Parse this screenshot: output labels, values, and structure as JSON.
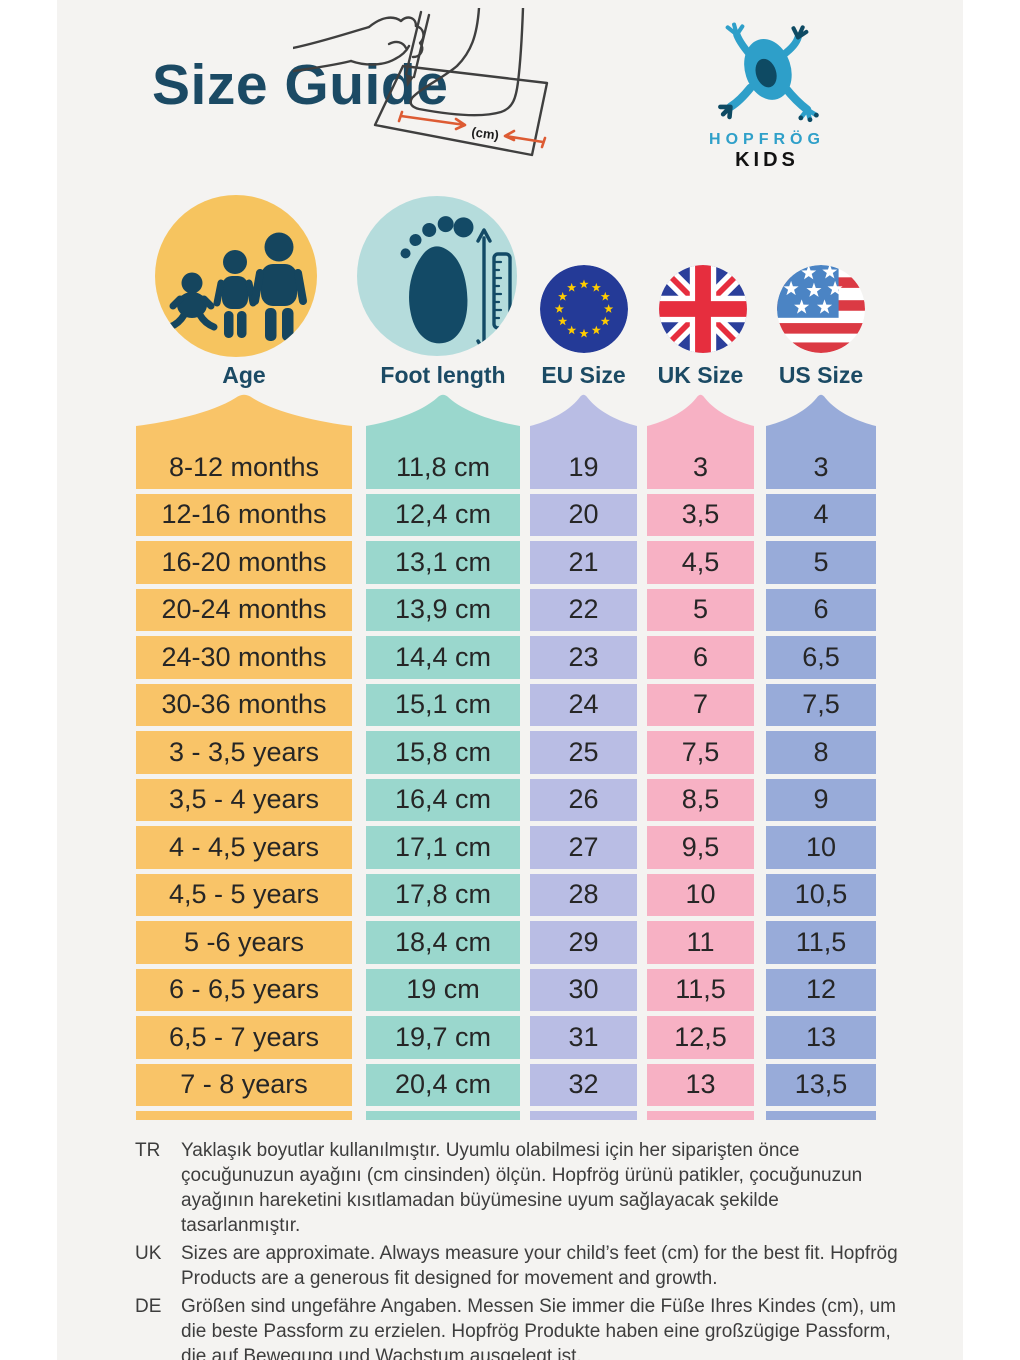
{
  "page": {
    "title": "Size Guide"
  },
  "logo": {
    "brand": "HOPFRÖG",
    "sub": "KIDS",
    "brand_color": "#2FA0C9"
  },
  "illustration": {
    "caption": "(cm)",
    "arrow_color": "#DD5B33"
  },
  "table": {
    "columns": [
      {
        "key": "age",
        "label": "Age",
        "band_color": "#F9C468",
        "circle_color": "#F6C45F",
        "icon": "family-icon"
      },
      {
        "key": "foot",
        "label": "Foot length",
        "band_color": "#9AD7CD",
        "circle_color": "#B5DCDC",
        "icon": "footprint-ruler-icon"
      },
      {
        "key": "eu",
        "label": "EU Size",
        "band_color": "#B9BDE4",
        "icon": "eu-flag-icon"
      },
      {
        "key": "uk",
        "label": "UK Size",
        "band_color": "#F7B1C4",
        "icon": "uk-flag-icon"
      },
      {
        "key": "us",
        "label": "US Size",
        "band_color": "#98ABD9",
        "icon": "us-flag-icon"
      }
    ],
    "rows": [
      {
        "age": "8-12 months",
        "foot": "11,8 cm",
        "eu": "19",
        "uk": "3",
        "us": "3"
      },
      {
        "age": "12-16 months",
        "foot": "12,4 cm",
        "eu": "20",
        "uk": "3,5",
        "us": "4"
      },
      {
        "age": "16-20 months",
        "foot": "13,1 cm",
        "eu": "21",
        "uk": "4,5",
        "us": "5"
      },
      {
        "age": "20-24 months",
        "foot": "13,9 cm",
        "eu": "22",
        "uk": "5",
        "us": "6"
      },
      {
        "age": "24-30 months",
        "foot": "14,4 cm",
        "eu": "23",
        "uk": "6",
        "us": "6,5"
      },
      {
        "age": "30-36 months",
        "foot": "15,1 cm",
        "eu": "24",
        "uk": "7",
        "us": "7,5"
      },
      {
        "age": "3 - 3,5 years",
        "foot": "15,8 cm",
        "eu": "25",
        "uk": "7,5",
        "us": "8"
      },
      {
        "age": "3,5 - 4 years",
        "foot": "16,4 cm",
        "eu": "26",
        "uk": "8,5",
        "us": "9"
      },
      {
        "age": "4 - 4,5 years",
        "foot": "17,1 cm",
        "eu": "27",
        "uk": "9,5",
        "us": "10"
      },
      {
        "age": "4,5 - 5 years",
        "foot": "17,8 cm",
        "eu": "28",
        "uk": "10",
        "us": "10,5"
      },
      {
        "age": "5 -6 years",
        "foot": "18,4 cm",
        "eu": "29",
        "uk": "11",
        "us": "11,5"
      },
      {
        "age": "6 - 6,5 years",
        "foot": "19 cm",
        "eu": "30",
        "uk": "11,5",
        "us": "12"
      },
      {
        "age": "6,5 - 7 years",
        "foot": "19,7 cm",
        "eu": "31",
        "uk": "12,5",
        "us": "13"
      },
      {
        "age": "7 - 8 years",
        "foot": "20,4 cm",
        "eu": "32",
        "uk": "13",
        "us": "13,5"
      }
    ]
  },
  "notes": [
    {
      "lang": "TR",
      "text": "Yaklaşık boyutlar kullanılmıştır. Uyumlu olabilmesi için her siparişten önce çocuğunuzun ayağını (cm cinsinden) ölçün. Hopfrög ürünü patikler, çocuğunuzun ayağının hareketini kısıtlamadan büyümesine uyum sağlayacak şekilde tasarlanmıştır."
    },
    {
      "lang": "UK",
      "text": "Sizes are approximate. Always measure your child’s feet (cm) for the best fit. Hopfrög Products are a generous fit designed for movement and growth."
    },
    {
      "lang": "DE",
      "text": "Größen sind ungefähre Angaben. Messen Sie immer die Füße Ihres Kindes (cm), um die beste Passform zu erzielen. Hopfrög Produkte haben eine großzügige Passform, die auf Bewegung und Wachstum ausgelegt ist."
    }
  ],
  "colors": {
    "canvas_bg": "#F4F3F1",
    "heading": "#1B4A64",
    "icon_dark": "#15455E"
  }
}
